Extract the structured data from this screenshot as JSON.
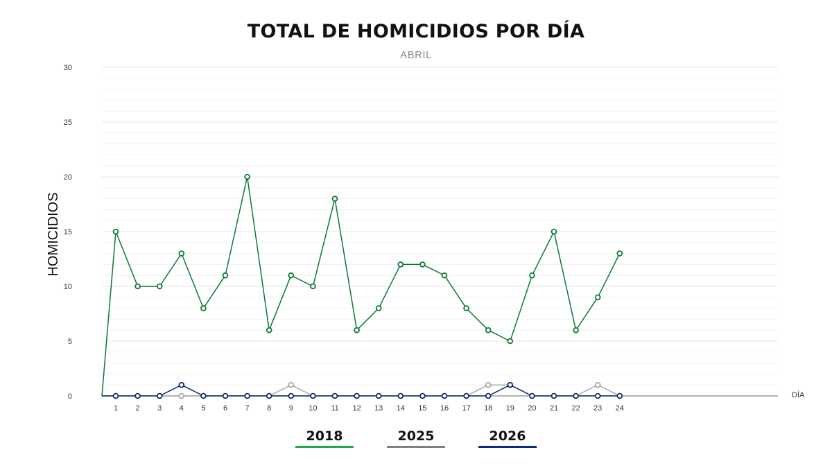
{
  "chart_data": {
    "type": "line",
    "title": "TOTAL DE HOMICIDIOS POR DÍA",
    "subtitle": "ABRIL",
    "xlabel": "DÍA",
    "ylabel": "HOMICIDIOS",
    "ylim": [
      0,
      30
    ],
    "yticks": [
      0,
      5,
      10,
      15,
      20,
      25,
      30
    ],
    "grid": true,
    "legend_position": "bottom",
    "categories": [
      "1",
      "2",
      "3",
      "4",
      "5",
      "6",
      "7",
      "8",
      "9",
      "10",
      "11",
      "12",
      "13",
      "14",
      "15",
      "16",
      "17",
      "18",
      "19",
      "20",
      "21",
      "22",
      "23",
      "24"
    ],
    "series": [
      {
        "name": "2018",
        "color": "#0a7a35",
        "legend_color": "#22a84a",
        "values": [
          15,
          10,
          10,
          13,
          8,
          11,
          20,
          6,
          11,
          10,
          18,
          6,
          8,
          12,
          12,
          11,
          8,
          6,
          5,
          11,
          15,
          6,
          9,
          13
        ]
      },
      {
        "name": "2025",
        "color": "#a8a8a8",
        "legend_color": "#808080",
        "values": [
          0,
          0,
          0,
          0,
          0,
          0,
          0,
          0,
          1,
          0,
          0,
          0,
          0,
          0,
          0,
          0,
          0,
          1,
          1,
          0,
          0,
          0,
          1,
          0
        ]
      },
      {
        "name": "2026",
        "color": "#0b2a66",
        "legend_color": "#0b2a80",
        "values": [
          0,
          0,
          0,
          1,
          0,
          0,
          0,
          0,
          0,
          0,
          0,
          0,
          0,
          0,
          0,
          0,
          0,
          0,
          1,
          0,
          0,
          0,
          0,
          0
        ]
      }
    ]
  }
}
